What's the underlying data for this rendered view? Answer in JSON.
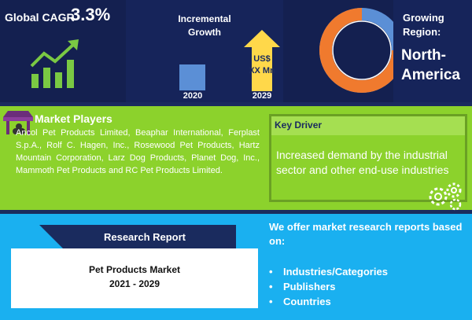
{
  "colors": {
    "navy": "#16245a",
    "green": "#8cd22c",
    "sky": "#1ab0f0",
    "accent_blue": "#5b8fd6",
    "orange": "#f07a2e",
    "arrow_yellow": "#ffd84a"
  },
  "top": {
    "cagr_label": "Global CAGR",
    "cagr_value": "3.3%",
    "growth_icon": "bar-chart-up-arrow-icon",
    "incremental_title_1": "Incremental",
    "incremental_title_2": "Growth",
    "bar_2020_label": "2020",
    "arrow_line1": "US$",
    "arrow_line2": "XX Mn",
    "bar_2029_label": "2029",
    "region_title_1": "Growing",
    "region_title_2": "Region:",
    "region_value_1": "North-",
    "region_value_2": "America"
  },
  "market_players": {
    "icon": "storefront-icon",
    "title": "Market Players",
    "body": "Ancol Pet Products Limited, Beaphar International, Ferplast S.p.A., Rolf C. Hagen, Inc., Rosewood Pet Products, Hartz Mountain Corporation, Larz Dog Products, Planet Dog, Inc., Mammoth Pet Products and RC Pet Products Limited."
  },
  "key_driver": {
    "title": "Key Driver",
    "text": "Increased demand by the industrial sector and other end-use industries",
    "icon": "gears-icon"
  },
  "report": {
    "banner": "Research Report",
    "title": "Pet Products Market",
    "years": "2021 - 2029"
  },
  "offer": {
    "title": "We offer market research reports based on:",
    "items": [
      {
        "bullet": "•",
        "label": "Industries/Categories"
      },
      {
        "bullet": "•",
        "label": "Publishers"
      },
      {
        "bullet": "•",
        "label": "Countries"
      }
    ]
  }
}
